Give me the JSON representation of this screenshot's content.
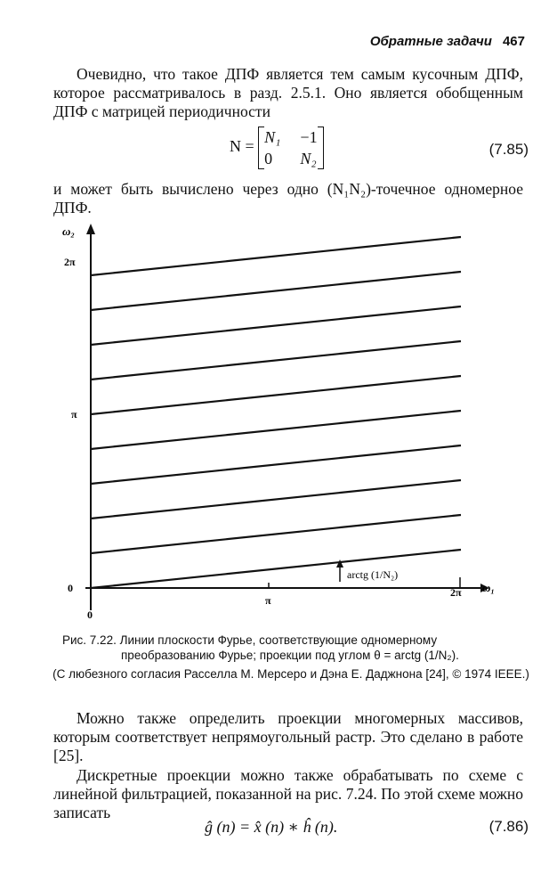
{
  "header": {
    "title": "Обратные задачи",
    "page": "467"
  },
  "para1": "Очевидно, что такое ДПФ является тем самым кусочным ДПФ, которое рассматривалось в разд. 2.5.1. Оно является обобщенным ДПФ с матрицей периодичности",
  "eq785": {
    "lhs": "N =",
    "m11": "N₁",
    "m12": "−1",
    "m21": "0",
    "m22": "N₂",
    "number": "(7.85)"
  },
  "para2": "и может быть вычислено через одно (N₁N₂)-точечное одномерное ДПФ.",
  "figure": {
    "y_axis_label": "ω₂",
    "x_axis_label": "ω₁",
    "y_ticks": [
      "2π",
      "π",
      "0"
    ],
    "x_ticks": [
      "π",
      "2π"
    ],
    "origin_label": "0",
    "angle_label": "arctg (1/N₂)",
    "line_count": 10
  },
  "caption": {
    "label": "Рис. 7.22.",
    "text": "Линии плоскости Фурье, соответствующие одномерному преобразованию Фурье; проекции под углом θ = arctg (1/N₂).",
    "credit": "(С любезного согласия Расселла М. Мерсеро и Дэна Е. Даджнона [24], © 1974 IEEE.)"
  },
  "para3": "Можно также определить проекции многомерных массивов, которым соответствует непрямоугольный растр. Это сделано в работе [25].",
  "para4": "Дискретные проекции можно также обрабатывать по схеме с линейной фильтрацией, показанной на рис. 7.24. По этой схеме можно записать",
  "eq786": {
    "text": "ĝ (n) = x̂ (n) ∗ ĥ (n).",
    "number": "(7.86)"
  }
}
